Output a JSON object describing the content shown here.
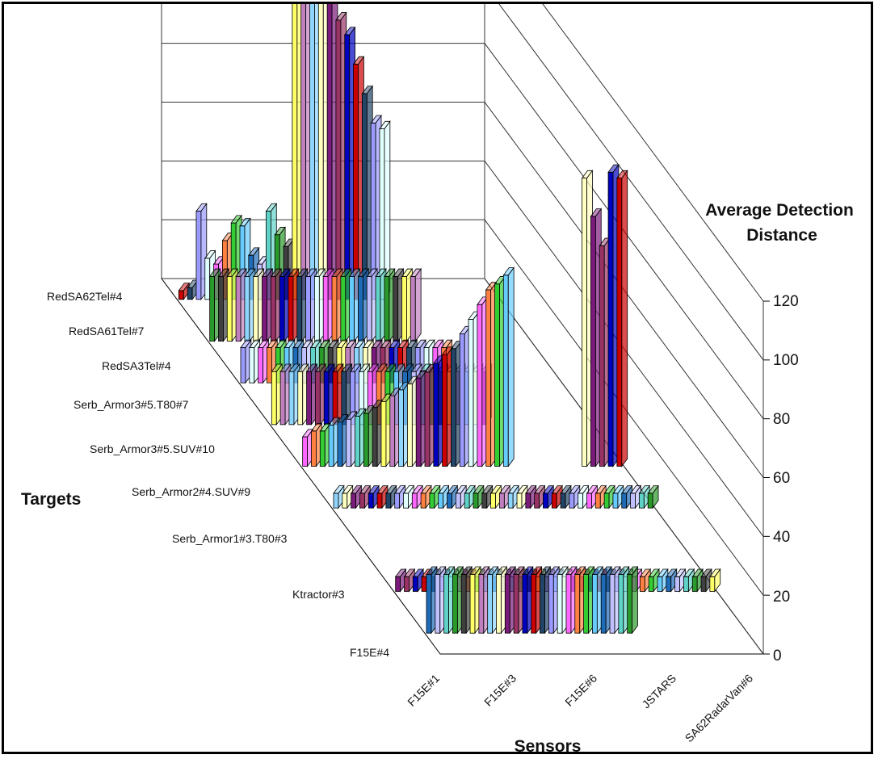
{
  "chart_data": {
    "type": "bar",
    "subtype": "3d-bar",
    "title": "",
    "xlabel": "Sensors",
    "ylabel": "Targets",
    "zlabel": "Average Detection Distance",
    "zlim": [
      0,
      120
    ],
    "z_ticks": [
      "0",
      "20",
      "40",
      "60",
      "80",
      "100",
      "120"
    ],
    "sensor_tick_labels": [
      "F15E#1",
      "F15E#3",
      "F15E#6",
      "JSTARS",
      "SA62RadarVan#6"
    ],
    "target_tick_labels": [
      "RedSA62Tel#4",
      "RedSA61Tel#7",
      "RedSA3Tel#4",
      "Serb_Armor3#5.T80#7",
      "Serb_Armor3#5.SUV#10",
      "Serb_Armor2#4.SUV#9",
      "Serb_Armor1#3.T80#3",
      "Ktractor#3",
      "F15E#4"
    ],
    "grid": true,
    "series": [
      {
        "name": "F15E#4",
        "values": [
          20,
          20,
          20,
          20,
          20,
          20,
          20,
          20,
          20,
          20,
          20,
          20,
          20,
          20,
          20,
          20,
          20,
          20,
          20,
          20,
          20,
          20,
          20,
          20,
          0,
          0,
          0,
          0,
          0,
          0,
          0,
          0,
          0,
          0,
          0,
          0,
          0
        ]
      },
      {
        "name": "Ktractor#3",
        "values": [
          5,
          5,
          5,
          5,
          5,
          5,
          5,
          5,
          5,
          5,
          5,
          5,
          5,
          5,
          5,
          5,
          5,
          5,
          5,
          5,
          5,
          5,
          5,
          5,
          5,
          5,
          5,
          5,
          5,
          5,
          5,
          5,
          5,
          5,
          5,
          5,
          5
        ]
      },
      {
        "name": "Serb_Armor1#3.T80#3",
        "values": [
          0,
          0,
          0,
          0,
          0,
          0,
          0,
          0,
          0,
          0,
          0,
          0,
          0,
          0,
          0,
          0,
          0,
          0,
          0,
          0,
          0,
          0,
          0,
          0,
          0,
          0,
          0,
          0,
          0,
          0,
          0,
          0,
          0,
          0,
          0,
          0,
          0
        ]
      },
      {
        "name": "Serb_Armor2#4.SUV#9",
        "values": [
          5,
          5,
          5,
          5,
          5,
          5,
          5,
          5,
          5,
          5,
          5,
          5,
          5,
          5,
          5,
          5,
          5,
          5,
          5,
          5,
          5,
          5,
          5,
          5,
          5,
          5,
          5,
          5,
          5,
          5,
          5,
          5,
          5,
          5,
          5,
          5,
          5
        ]
      },
      {
        "name": "Serb_Armor3#5.SUV#10",
        "values": [
          10,
          12,
          12,
          14,
          15,
          16,
          17,
          18,
          20,
          22,
          24,
          26,
          28,
          30,
          32,
          35,
          38,
          40,
          45,
          50,
          55,
          60,
          62,
          65,
          0,
          0,
          0,
          0,
          0,
          0,
          0,
          0,
          98,
          85,
          75,
          100,
          98
        ]
      },
      {
        "name": "Serb_Armor3#5.T80#7",
        "values": [
          18,
          18,
          18,
          18,
          18,
          18,
          18,
          18,
          18,
          18,
          18,
          18,
          18,
          18,
          18,
          18,
          18,
          18,
          18,
          18,
          18,
          18,
          18,
          18,
          18,
          0,
          0,
          0,
          0,
          0,
          0,
          0,
          0,
          0,
          0,
          0,
          0
        ]
      },
      {
        "name": "RedSA3Tel#4",
        "values": [
          12,
          12,
          12,
          12,
          12,
          12,
          12,
          12,
          12,
          12,
          12,
          12,
          12,
          12,
          12,
          12,
          12,
          12,
          12,
          12,
          12,
          12,
          12,
          12,
          0,
          0,
          0,
          0,
          0,
          0,
          0,
          0,
          0,
          0,
          0,
          0,
          0
        ]
      },
      {
        "name": "RedSA61Tel#7",
        "values": [
          22,
          22,
          22,
          22,
          22,
          22,
          22,
          22,
          22,
          22,
          22,
          22,
          22,
          22,
          22,
          22,
          22,
          22,
          22,
          22,
          22,
          22,
          22,
          22,
          0,
          0,
          0,
          0,
          0,
          0,
          0,
          0,
          0,
          0,
          0,
          0,
          0
        ]
      },
      {
        "name": "RedSA62Tel#4",
        "values": [
          3,
          4,
          30,
          14,
          12,
          20,
          26,
          25,
          15,
          12,
          30,
          22,
          18,
          115,
          112,
          110,
          108,
          105,
          95,
          90,
          80,
          70,
          60,
          58,
          0,
          0,
          0,
          0,
          0,
          0,
          0,
          0,
          0,
          0,
          0,
          0,
          0
        ]
      }
    ]
  }
}
